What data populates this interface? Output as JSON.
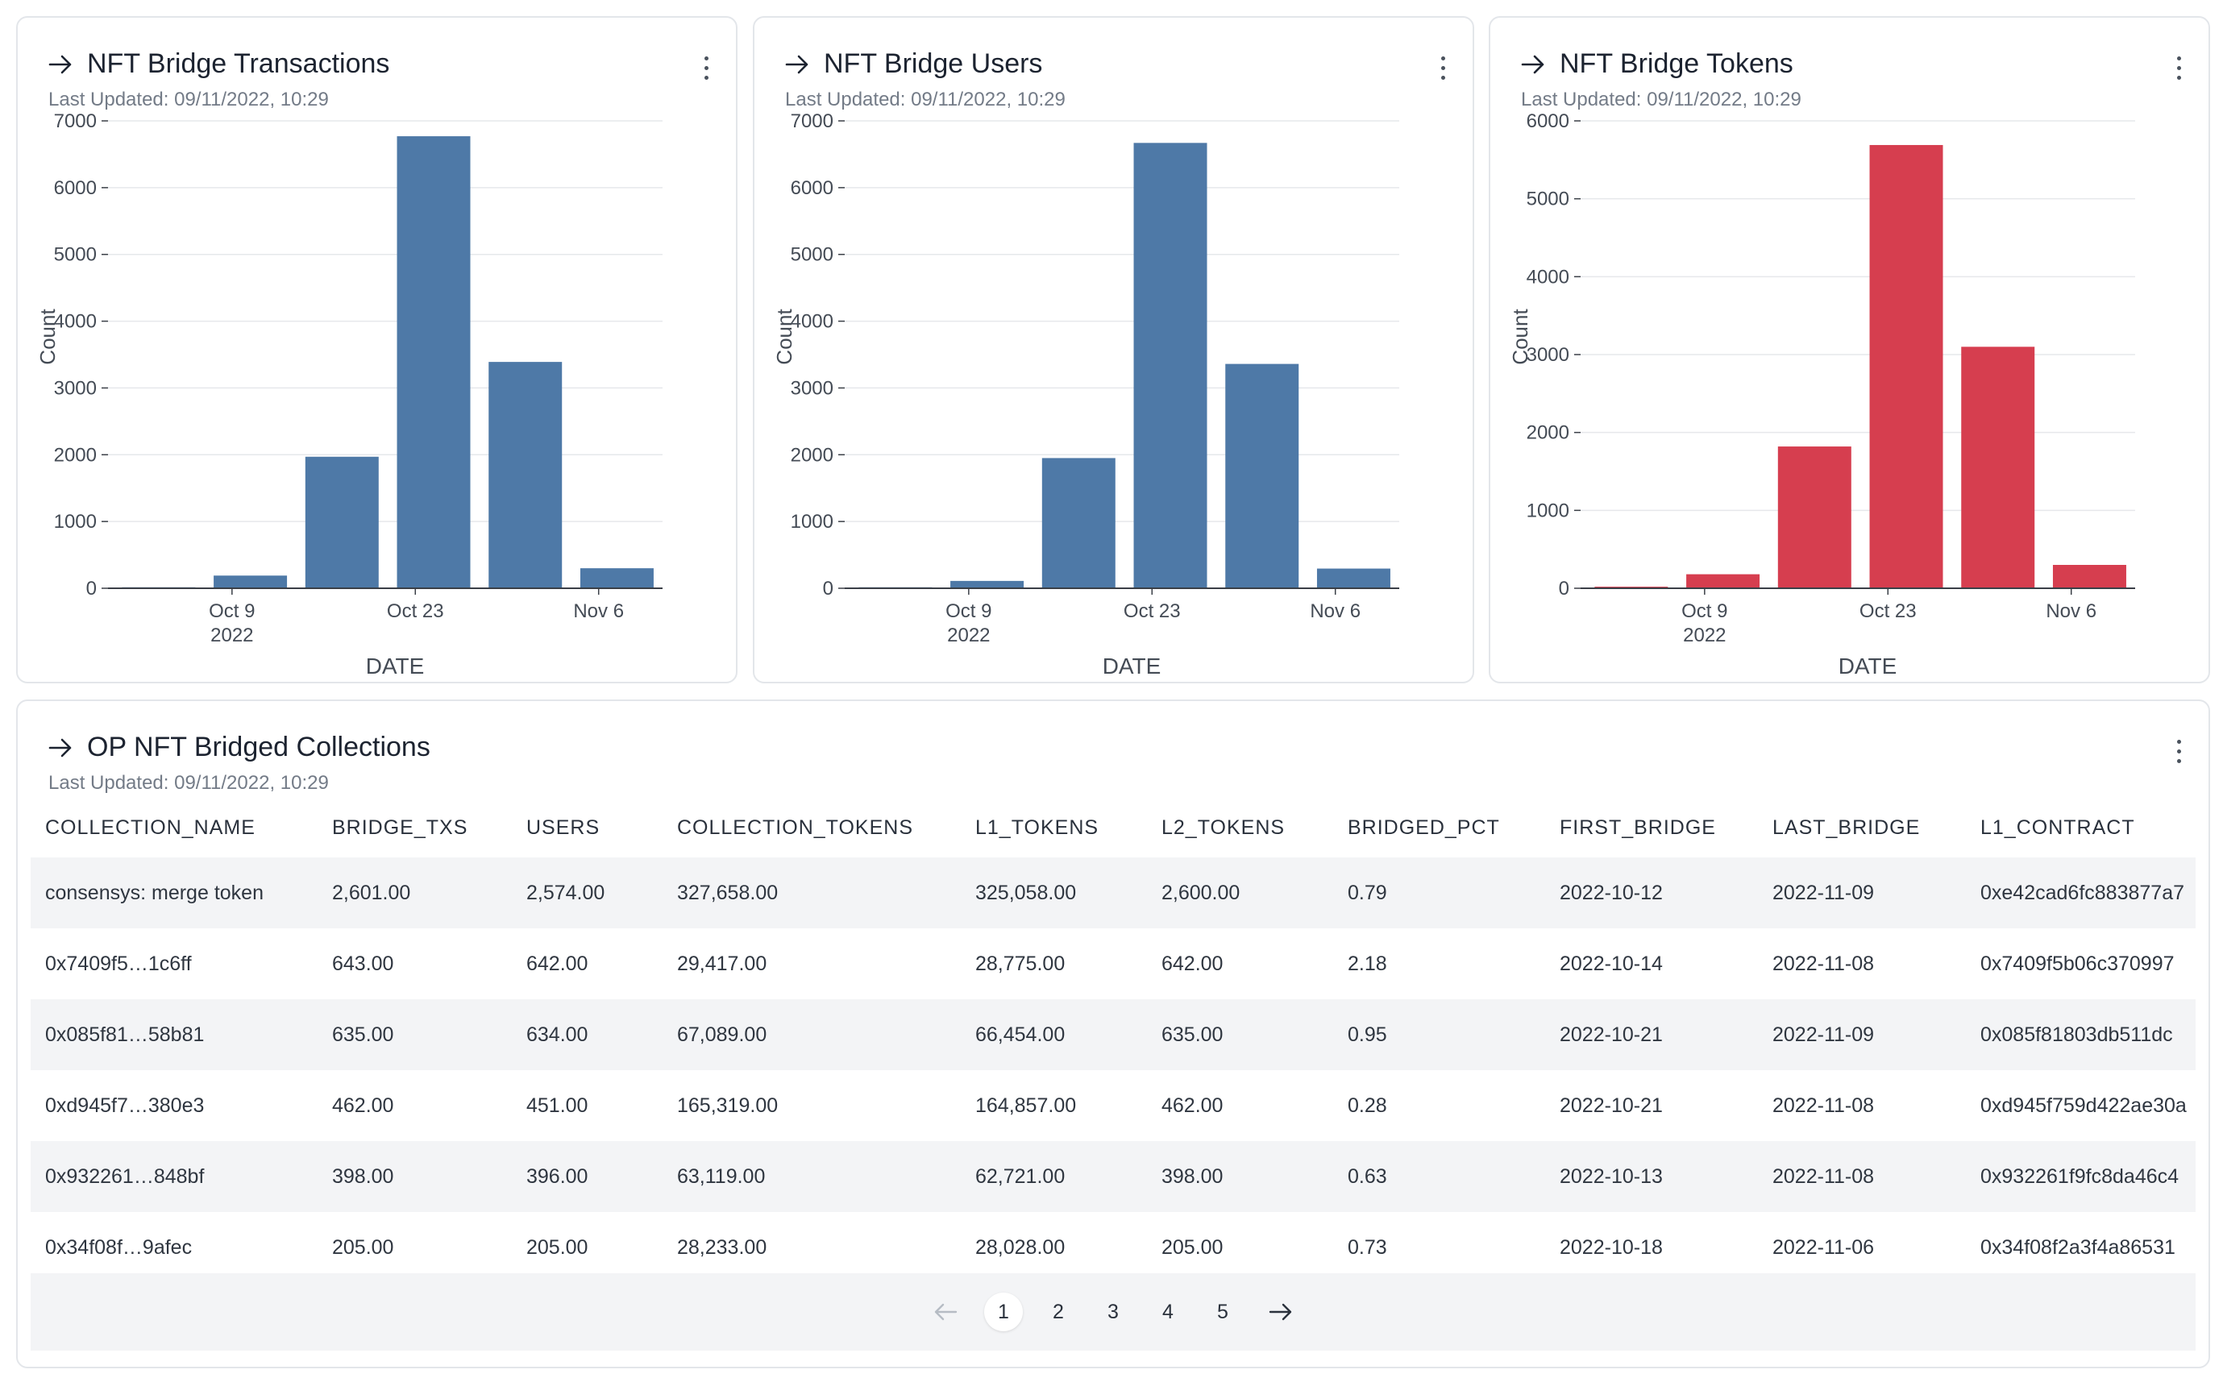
{
  "colors": {
    "blue_bar": "#4e79a7",
    "red_bar": "#d63e4f",
    "grid": "#e6e8eb",
    "axis": "#3a3f47"
  },
  "icons": {
    "title_arrow": "arrow-right-icon",
    "menu": "kebab-menu-icon"
  },
  "cards": [
    {
      "title": "NFT Bridge Transactions",
      "updated": "Last Updated: 09/11/2022, 10:29",
      "bar_color": "#4e79a7",
      "chart_data": {
        "type": "bar",
        "title": "NFT Bridge Transactions",
        "xlabel": "DATE",
        "ylabel": "Count",
        "ylim": [
          0,
          7000
        ],
        "yticks": [
          "0",
          "1000",
          "2000",
          "3000",
          "4000",
          "5000",
          "6000",
          "7000"
        ],
        "xticks": [
          "Oct 9",
          "Oct 23",
          "Nov 6"
        ],
        "xtick_year": "2022",
        "x": [
          "2022-10-02",
          "2022-10-09",
          "2022-10-16",
          "2022-10-23",
          "2022-10-30",
          "2022-11-06"
        ],
        "values": [
          15,
          190,
          1970,
          6770,
          3390,
          300
        ]
      }
    },
    {
      "title": "NFT Bridge Users",
      "updated": "Last Updated: 09/11/2022, 10:29",
      "bar_color": "#4e79a7",
      "chart_data": {
        "type": "bar",
        "title": "NFT Bridge Users",
        "xlabel": "DATE",
        "ylabel": "Count",
        "ylim": [
          0,
          7000
        ],
        "yticks": [
          "0",
          "1000",
          "2000",
          "3000",
          "4000",
          "5000",
          "6000",
          "7000"
        ],
        "xticks": [
          "Oct 9",
          "Oct 23",
          "Nov 6"
        ],
        "xtick_year": "2022",
        "x": [
          "2022-10-02",
          "2022-10-09",
          "2022-10-16",
          "2022-10-23",
          "2022-10-30",
          "2022-11-06"
        ],
        "values": [
          15,
          110,
          1950,
          6670,
          3360,
          295
        ]
      }
    },
    {
      "title": "NFT Bridge Tokens",
      "updated": "Last Updated: 09/11/2022, 10:29",
      "bar_color": "#d63e4f",
      "chart_data": {
        "type": "bar",
        "title": "NFT Bridge Tokens",
        "xlabel": "DATE",
        "ylabel": "Count",
        "ylim": [
          0,
          6000
        ],
        "yticks": [
          "0",
          "1000",
          "2000",
          "3000",
          "4000",
          "5000",
          "6000"
        ],
        "xticks": [
          "Oct 9",
          "Oct 23",
          "Nov 6"
        ],
        "xtick_year": "2022",
        "x": [
          "2022-10-02",
          "2022-10-09",
          "2022-10-16",
          "2022-10-23",
          "2022-10-30",
          "2022-11-06"
        ],
        "values": [
          20,
          180,
          1820,
          5690,
          3100,
          300
        ]
      }
    }
  ],
  "table_card": {
    "title": "OP NFT Bridged Collections",
    "updated": "Last Updated: 09/11/2022, 10:29",
    "columns": [
      "COLLECTION_NAME",
      "BRIDGE_TXS",
      "USERS",
      "COLLECTION_TOKENS",
      "L1_TOKENS",
      "L2_TOKENS",
      "BRIDGED_PCT",
      "FIRST_BRIDGE",
      "LAST_BRIDGE",
      "L1_CONTRACT"
    ],
    "rows": [
      [
        "consensys: merge token",
        "2,601.00",
        "2,574.00",
        "327,658.00",
        "325,058.00",
        "2,600.00",
        "0.79",
        "2022-10-12",
        "2022-11-09",
        "0xe42cad6fc883877a7"
      ],
      [
        "0x7409f5…1c6ff",
        "643.00",
        "642.00",
        "29,417.00",
        "28,775.00",
        "642.00",
        "2.18",
        "2022-10-14",
        "2022-11-08",
        "0x7409f5b06c370997"
      ],
      [
        "0x085f81…58b81",
        "635.00",
        "634.00",
        "67,089.00",
        "66,454.00",
        "635.00",
        "0.95",
        "2022-10-21",
        "2022-11-09",
        "0x085f81803db511dc"
      ],
      [
        "0xd945f7…380e3",
        "462.00",
        "451.00",
        "165,319.00",
        "164,857.00",
        "462.00",
        "0.28",
        "2022-10-21",
        "2022-11-08",
        "0xd945f759d422ae30a"
      ],
      [
        "0x932261…848bf",
        "398.00",
        "396.00",
        "63,119.00",
        "62,721.00",
        "398.00",
        "0.63",
        "2022-10-13",
        "2022-11-08",
        "0x932261f9fc8da46c4"
      ],
      [
        "0x34f08f…9afec",
        "205.00",
        "205.00",
        "28,233.00",
        "28,028.00",
        "205.00",
        "0.73",
        "2022-10-18",
        "2022-11-06",
        "0x34f08f2a3f4a86531"
      ]
    ],
    "pagination": {
      "pages": [
        "1",
        "2",
        "3",
        "4",
        "5"
      ],
      "current": "1"
    }
  }
}
